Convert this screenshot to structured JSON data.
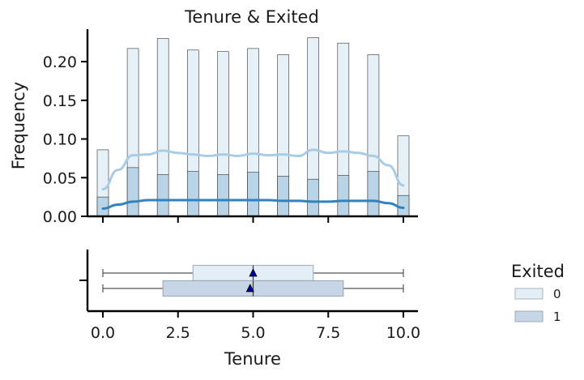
{
  "chart_data": {
    "type": "histogram+kde+boxplot",
    "title": "Tenure & Exited",
    "xlabel": "Tenure",
    "ylabel": "Frequency",
    "xlim": [
      -0.5,
      10.5
    ],
    "ylim": [
      0,
      0.24
    ],
    "x_ticks": [
      "0.0",
      "2.5",
      "5.0",
      "7.5",
      "10.0"
    ],
    "y_ticks": [
      "0.00",
      "0.05",
      "0.10",
      "0.15",
      "0.20"
    ],
    "grid": false,
    "legend": {
      "title": "Exited",
      "placement": "right",
      "entries": [
        "0",
        "1"
      ]
    },
    "colors": {
      "exited_0": "#e3eef6",
      "exited_1": "#b6d2e6",
      "kde_0": "#a9cce6",
      "kde_1": "#3182bd",
      "mean_marker": "#0000a0"
    },
    "histogram": {
      "x": [
        0,
        1,
        2,
        3,
        4,
        5,
        6,
        7,
        8,
        9,
        10
      ],
      "series": [
        {
          "name": "0",
          "values": [
            0.086,
            0.217,
            0.23,
            0.215,
            0.213,
            0.217,
            0.209,
            0.231,
            0.224,
            0.209,
            0.104
          ]
        },
        {
          "name": "1",
          "values": [
            0.025,
            0.063,
            0.054,
            0.058,
            0.054,
            0.057,
            0.052,
            0.048,
            0.053,
            0.058,
            0.027
          ]
        }
      ]
    },
    "kde": {
      "x": [
        0,
        0.5,
        1,
        1.5,
        2,
        2.5,
        3,
        3.5,
        4,
        4.5,
        5,
        5.5,
        6,
        6.5,
        7,
        7.5,
        8,
        8.5,
        9,
        9.5,
        10
      ],
      "series": [
        {
          "name": "0",
          "values": [
            0.035,
            0.06,
            0.079,
            0.08,
            0.085,
            0.082,
            0.08,
            0.078,
            0.08,
            0.078,
            0.081,
            0.079,
            0.08,
            0.078,
            0.086,
            0.082,
            0.084,
            0.082,
            0.078,
            0.066,
            0.04
          ]
        },
        {
          "name": "1",
          "values": [
            0.01,
            0.015,
            0.019,
            0.021,
            0.021,
            0.021,
            0.021,
            0.021,
            0.021,
            0.021,
            0.021,
            0.021,
            0.02,
            0.02,
            0.019,
            0.019,
            0.02,
            0.02,
            0.02,
            0.017,
            0.011
          ]
        }
      ]
    },
    "boxplot": [
      {
        "name": "0",
        "min": 0,
        "q1": 3,
        "median": 5,
        "q3": 7,
        "max": 10,
        "mean": 5.0
      },
      {
        "name": "1",
        "min": 0,
        "q1": 2,
        "median": 5,
        "q3": 8,
        "max": 10,
        "mean": 4.9
      }
    ]
  }
}
